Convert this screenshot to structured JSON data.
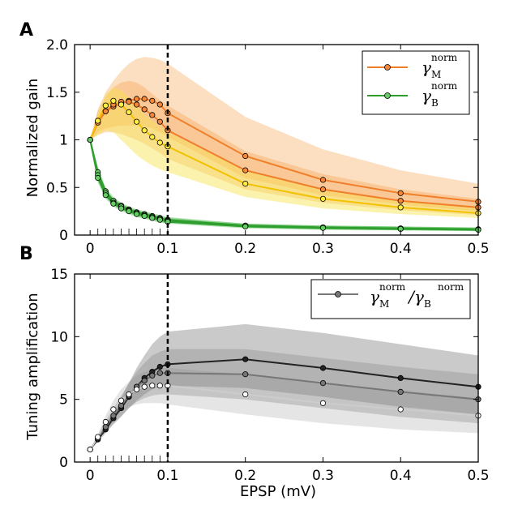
{
  "colors": {
    "orange_line": "#f07f2a",
    "orange_marker": "#f4873a",
    "yellow_line": "#f2c200",
    "yellow_marker": "#ffee44",
    "green_line": "#2e9e2e",
    "green_marker": "#66cc66",
    "band_orange": "#f7a04a",
    "band_yellow": "#f6e24a",
    "band_green": "#30b030",
    "gray_black": "#222222",
    "gray_mid": "#777777",
    "gray_light": "#cccccc",
    "band_gray": "#8a8a8a",
    "dashed_line": "#000000"
  },
  "chart_data": [
    {
      "panel": "A",
      "type": "line",
      "ylabel": "Normalized gain",
      "xlabel": "",
      "xlim": [
        -0.02,
        0.5
      ],
      "ylim": [
        0,
        2.0
      ],
      "x_ticks": [
        0,
        0.1,
        0.2,
        0.3,
        0.4,
        0.5
      ],
      "x_tick_labels": [
        "0",
        "0.1",
        "0.2",
        "0.3",
        "0.4",
        "0.5"
      ],
      "y_ticks": [
        0,
        0.5,
        1,
        1.5,
        2.0
      ],
      "y_tick_labels": [
        "0",
        "0.5",
        "1",
        "1.5",
        "2.0"
      ],
      "vline_x": 0.1,
      "minor_x_ticks": [
        0.01,
        0.02,
        0.03,
        0.04,
        0.05,
        0.06,
        0.07,
        0.08,
        0.09,
        0.1
      ],
      "x": [
        0,
        0.01,
        0.02,
        0.03,
        0.04,
        0.05,
        0.06,
        0.07,
        0.08,
        0.09,
        0.1,
        0.2,
        0.3,
        0.4,
        0.5
      ],
      "legend_position": "top-right",
      "legend": [
        {
          "symbol": "γ",
          "sub": "M",
          "sup": "norm",
          "color_key": "orange_line"
        },
        {
          "symbol": "γ",
          "sub": "B",
          "sup": "norm",
          "color_key": "green_line"
        }
      ],
      "series": [
        {
          "group": "gamma_M",
          "level": "upper",
          "values": [
            1.0,
            1.2,
            1.3,
            1.35,
            1.38,
            1.41,
            1.43,
            1.43,
            1.41,
            1.37,
            1.28,
            0.83,
            0.58,
            0.44,
            0.35
          ],
          "band": [
            [
              1.0,
              1.0
            ],
            [
              1.08,
              1.32
            ],
            [
              1.12,
              1.5
            ],
            [
              1.14,
              1.62
            ],
            [
              1.15,
              1.72
            ],
            [
              1.15,
              1.8
            ],
            [
              1.15,
              1.85
            ],
            [
              1.14,
              1.87
            ],
            [
              1.12,
              1.86
            ],
            [
              1.08,
              1.84
            ],
            [
              1.03,
              1.8
            ],
            [
              0.6,
              1.24
            ],
            [
              0.42,
              0.9
            ],
            [
              0.32,
              0.68
            ],
            [
              0.25,
              0.54
            ]
          ]
        },
        {
          "group": "gamma_M",
          "level": "middle",
          "values": [
            1.0,
            1.18,
            1.3,
            1.37,
            1.4,
            1.4,
            1.37,
            1.32,
            1.26,
            1.19,
            1.1,
            0.68,
            0.48,
            0.36,
            0.29
          ],
          "band": [
            [
              1.0,
              1.0
            ],
            [
              1.05,
              1.3
            ],
            [
              1.08,
              1.45
            ],
            [
              1.08,
              1.55
            ],
            [
              1.06,
              1.6
            ],
            [
              1.03,
              1.62
            ],
            [
              1.0,
              1.6
            ],
            [
              0.96,
              1.55
            ],
            [
              0.91,
              1.48
            ],
            [
              0.86,
              1.42
            ],
            [
              0.8,
              1.36
            ],
            [
              0.48,
              0.88
            ],
            [
              0.34,
              0.64
            ],
            [
              0.26,
              0.48
            ],
            [
              0.21,
              0.38
            ]
          ]
        },
        {
          "group": "gamma_M",
          "level": "lower",
          "values": [
            1.0,
            1.2,
            1.36,
            1.41,
            1.37,
            1.29,
            1.19,
            1.1,
            1.03,
            0.97,
            0.93,
            0.54,
            0.38,
            0.29,
            0.23
          ],
          "band": [
            [
              1.0,
              1.0
            ],
            [
              1.05,
              1.28
            ],
            [
              1.1,
              1.48
            ],
            [
              1.08,
              1.55
            ],
            [
              1.0,
              1.52
            ],
            [
              0.92,
              1.45
            ],
            [
              0.84,
              1.36
            ],
            [
              0.78,
              1.27
            ],
            [
              0.73,
              1.2
            ],
            [
              0.69,
              1.14
            ],
            [
              0.66,
              1.08
            ],
            [
              0.4,
              0.68
            ],
            [
              0.28,
              0.48
            ],
            [
              0.22,
              0.36
            ],
            [
              0.18,
              0.29
            ]
          ]
        },
        {
          "group": "gamma_B",
          "level": "upper",
          "values": [
            1.0,
            0.66,
            0.46,
            0.36,
            0.31,
            0.27,
            0.24,
            0.22,
            0.2,
            0.18,
            0.16,
            0.1,
            0.08,
            0.07,
            0.06
          ],
          "band": [
            [
              1.0,
              1.0
            ],
            [
              0.6,
              0.72
            ],
            [
              0.42,
              0.5
            ],
            [
              0.33,
              0.4
            ],
            [
              0.28,
              0.34
            ],
            [
              0.24,
              0.3
            ],
            [
              0.21,
              0.27
            ],
            [
              0.19,
              0.25
            ],
            [
              0.17,
              0.23
            ],
            [
              0.15,
              0.21
            ],
            [
              0.14,
              0.19
            ],
            [
              0.08,
              0.12
            ],
            [
              0.06,
              0.1
            ],
            [
              0.05,
              0.09
            ],
            [
              0.045,
              0.08
            ]
          ]
        },
        {
          "group": "gamma_B",
          "level": "middle",
          "values": [
            1.0,
            0.63,
            0.44,
            0.34,
            0.3,
            0.26,
            0.23,
            0.21,
            0.19,
            0.17,
            0.15,
            0.1,
            0.08,
            0.07,
            0.06
          ],
          "band": [
            [
              1.0,
              1.0
            ],
            [
              0.58,
              0.68
            ],
            [
              0.4,
              0.48
            ],
            [
              0.31,
              0.38
            ],
            [
              0.27,
              0.33
            ],
            [
              0.23,
              0.29
            ],
            [
              0.2,
              0.26
            ],
            [
              0.18,
              0.24
            ],
            [
              0.16,
              0.22
            ],
            [
              0.14,
              0.2
            ],
            [
              0.13,
              0.18
            ],
            [
              0.08,
              0.12
            ],
            [
              0.06,
              0.1
            ],
            [
              0.05,
              0.09
            ],
            [
              0.045,
              0.08
            ]
          ]
        },
        {
          "group": "gamma_B",
          "level": "lower",
          "values": [
            1.0,
            0.6,
            0.42,
            0.33,
            0.28,
            0.25,
            0.22,
            0.2,
            0.18,
            0.16,
            0.14,
            0.09,
            0.075,
            0.065,
            0.055
          ],
          "band": [
            [
              1.0,
              1.0
            ],
            [
              0.55,
              0.65
            ],
            [
              0.38,
              0.46
            ],
            [
              0.3,
              0.37
            ],
            [
              0.25,
              0.31
            ],
            [
              0.22,
              0.28
            ],
            [
              0.19,
              0.25
            ],
            [
              0.17,
              0.23
            ],
            [
              0.15,
              0.21
            ],
            [
              0.13,
              0.19
            ],
            [
              0.12,
              0.17
            ],
            [
              0.07,
              0.11
            ],
            [
              0.055,
              0.095
            ],
            [
              0.05,
              0.085
            ],
            [
              0.04,
              0.075
            ]
          ]
        }
      ]
    },
    {
      "panel": "B",
      "type": "line",
      "ylabel": "Tuning amplification",
      "xlabel": "EPSP (mV)",
      "xlim": [
        -0.02,
        0.5
      ],
      "ylim": [
        0,
        15
      ],
      "x_ticks": [
        0,
        0.1,
        0.2,
        0.3,
        0.4,
        0.5
      ],
      "x_tick_labels": [
        "0",
        "0.1",
        "0.2",
        "0.3",
        "0.4",
        "0.5"
      ],
      "y_ticks": [
        0,
        5,
        10,
        15
      ],
      "y_tick_labels": [
        "0",
        "5",
        "10",
        "15"
      ],
      "vline_x": 0.1,
      "minor_x_ticks": [
        0.01,
        0.02,
        0.03,
        0.04,
        0.05,
        0.06,
        0.07,
        0.08,
        0.09,
        0.1
      ],
      "x": [
        0,
        0.01,
        0.02,
        0.03,
        0.04,
        0.05,
        0.06,
        0.07,
        0.08,
        0.09,
        0.1,
        0.2,
        0.3,
        0.4,
        0.5
      ],
      "legend_position": "top-right",
      "legend": [
        {
          "symbol": "γ",
          "sub": "M",
          "sup": "norm",
          "symbol2": "γ",
          "sub2": "B",
          "sup2": "norm",
          "color_key": "gray_mid"
        }
      ],
      "series": [
        {
          "group": "ratio",
          "level": "dark",
          "values": [
            1.0,
            1.8,
            2.6,
            3.5,
            4.3,
            5.2,
            6.0,
            6.7,
            7.2,
            7.6,
            7.8,
            8.2,
            7.5,
            6.7,
            6.0
          ],
          "band": [
            [
              1.0,
              1.0
            ],
            [
              1.6,
              2.0
            ],
            [
              2.3,
              3.0
            ],
            [
              3.0,
              4.1
            ],
            [
              3.6,
              5.1
            ],
            [
              4.3,
              6.3
            ],
            [
              4.9,
              7.5
            ],
            [
              5.4,
              8.5
            ],
            [
              5.8,
              9.4
            ],
            [
              6.0,
              10.0
            ],
            [
              6.1,
              10.4
            ],
            [
              5.9,
              11.0
            ],
            [
              5.2,
              10.3
            ],
            [
              4.4,
              9.4
            ],
            [
              3.8,
              8.5
            ]
          ]
        },
        {
          "group": "ratio",
          "level": "mid",
          "values": [
            1.0,
            1.9,
            2.8,
            3.7,
            4.5,
            5.3,
            6.0,
            6.5,
            6.9,
            7.1,
            7.1,
            7.0,
            6.3,
            5.6,
            5.0
          ],
          "band": [
            [
              1.0,
              1.0
            ],
            [
              1.7,
              2.1
            ],
            [
              2.4,
              3.2
            ],
            [
              3.1,
              4.3
            ],
            [
              3.7,
              5.3
            ],
            [
              4.3,
              6.3
            ],
            [
              4.8,
              7.2
            ],
            [
              5.1,
              7.9
            ],
            [
              5.3,
              8.5
            ],
            [
              5.4,
              8.8
            ],
            [
              5.4,
              9.0
            ],
            [
              5.0,
              9.0
            ],
            [
              4.3,
              8.3
            ],
            [
              3.6,
              7.6
            ],
            [
              3.1,
              7.0
            ]
          ]
        },
        {
          "group": "ratio",
          "level": "light",
          "values": [
            1.0,
            2.0,
            3.2,
            4.2,
            4.9,
            5.4,
            5.8,
            6.0,
            6.1,
            6.1,
            6.1,
            5.4,
            4.7,
            4.2,
            3.7
          ],
          "band": [
            [
              1.0,
              1.0
            ],
            [
              1.8,
              2.2
            ],
            [
              2.7,
              3.7
            ],
            [
              3.5,
              4.9
            ],
            [
              4.0,
              5.8
            ],
            [
              4.4,
              6.4
            ],
            [
              4.6,
              6.9
            ],
            [
              4.7,
              7.2
            ],
            [
              4.7,
              7.4
            ],
            [
              4.7,
              7.5
            ],
            [
              4.6,
              7.5
            ],
            [
              3.8,
              7.0
            ],
            [
              3.1,
              6.3
            ],
            [
              2.6,
              5.7
            ],
            [
              2.3,
              5.1
            ]
          ]
        }
      ]
    }
  ]
}
